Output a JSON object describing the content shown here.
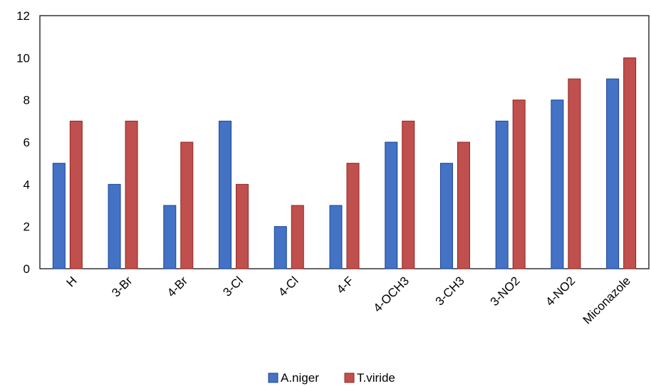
{
  "chart_data": {
    "type": "bar",
    "categories": [
      "H",
      "3-Br",
      "4-Br",
      "3-Cl",
      "4-Cl",
      "4-F",
      "4-OCH3",
      "3-CH3",
      "3-NO2",
      "4-NO2",
      "Miconazole"
    ],
    "series": [
      {
        "name": "A.niger",
        "color": "#4472C4",
        "values": [
          5,
          4,
          3,
          7,
          2,
          3,
          6,
          5,
          7,
          8,
          9
        ]
      },
      {
        "name": "T.viride",
        "color": "#C0504D",
        "values": [
          7,
          7,
          6,
          4,
          3,
          5,
          7,
          6,
          8,
          9,
          10
        ]
      }
    ],
    "yticks": [
      "0",
      "2",
      "4",
      "6",
      "8",
      "10",
      "12"
    ],
    "ylim": [
      0,
      12
    ],
    "grid": false,
    "legend": "bottom"
  }
}
